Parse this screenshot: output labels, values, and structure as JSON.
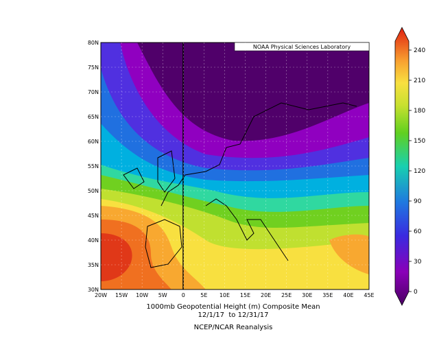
{
  "map": {
    "credit": "NOAA Physical Sciences Laboratory",
    "lat_labels": [
      "30N",
      "35N",
      "40N",
      "45N",
      "50N",
      "55N",
      "60N",
      "65N",
      "70N",
      "75N",
      "80N"
    ],
    "lon_labels": [
      "20W",
      "15W",
      "10W",
      "5W",
      "0",
      "5E",
      "10E",
      "15E",
      "20E",
      "25E",
      "30E",
      "35E",
      "40E",
      "45E"
    ],
    "title": "1000mb Geopotential Height (m) Composite Mean",
    "dates": "12/1/17  to 12/31/17",
    "source": "NCEP/NCAR Reanalysis",
    "colorbar": {
      "ticks": [
        0,
        30,
        60,
        90,
        120,
        150,
        180,
        210,
        240
      ]
    }
  }
}
